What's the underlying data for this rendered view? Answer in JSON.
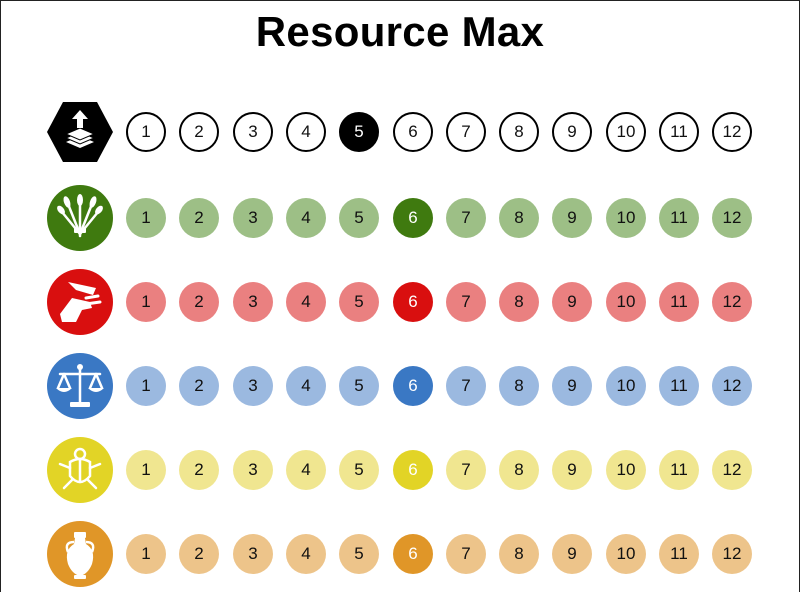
{
  "title": "Resource Max",
  "tracks": [
    {
      "resource_icon": "card-stack-upgrade-icon",
      "icon_color": "#000000",
      "style": "outline",
      "active_color": "#000000",
      "selected": 5,
      "values": [
        "1",
        "2",
        "3",
        "4",
        "5",
        "6",
        "7",
        "8",
        "9",
        "10",
        "11",
        "12"
      ]
    },
    {
      "resource_icon": "wheat-sheaf-icon",
      "icon_color": "#3f7a0f",
      "style": "filled",
      "cell_color": "#9dbf86",
      "active_color": "#3f7a0f",
      "selected": 6,
      "values": [
        "1",
        "2",
        "3",
        "4",
        "5",
        "6",
        "7",
        "8",
        "9",
        "10",
        "11",
        "12"
      ]
    },
    {
      "resource_icon": "hand-knife-icon",
      "icon_color": "#d90f0f",
      "style": "filled",
      "cell_color": "#ea8080",
      "active_color": "#d90f0f",
      "selected": 6,
      "values": [
        "1",
        "2",
        "3",
        "4",
        "5",
        "6",
        "7",
        "8",
        "9",
        "10",
        "11",
        "12"
      ]
    },
    {
      "resource_icon": "scales-icon",
      "icon_color": "#3a78c4",
      "style": "filled",
      "cell_color": "#9bb9e0",
      "active_color": "#3a78c4",
      "selected": 6,
      "values": [
        "1",
        "2",
        "3",
        "4",
        "5",
        "6",
        "7",
        "8",
        "9",
        "10",
        "11",
        "12"
      ]
    },
    {
      "resource_icon": "scarab-icon",
      "icon_color": "#e2d426",
      "style": "filled",
      "cell_color": "#f0e690",
      "active_color": "#e2d426",
      "selected": 6,
      "values": [
        "1",
        "2",
        "3",
        "4",
        "5",
        "6",
        "7",
        "8",
        "9",
        "10",
        "11",
        "12"
      ]
    },
    {
      "resource_icon": "amphora-icon",
      "icon_color": "#e09628",
      "style": "filled",
      "cell_color": "#edc48a",
      "active_color": "#e09628",
      "selected": 6,
      "values": [
        "1",
        "2",
        "3",
        "4",
        "5",
        "6",
        "7",
        "8",
        "9",
        "10",
        "11",
        "12"
      ]
    }
  ]
}
